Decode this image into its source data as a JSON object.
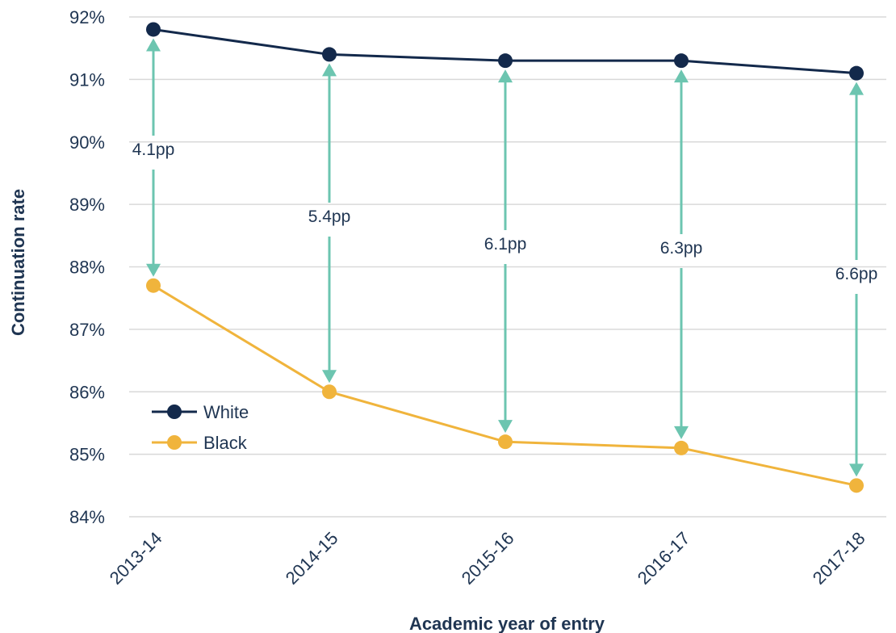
{
  "chart_data": {
    "type": "line",
    "title": "",
    "xlabel": "Academic year of entry",
    "ylabel": "Continuation rate",
    "categories": [
      "2013-14",
      "2014-15",
      "2015-16",
      "2016-17",
      "2017-18"
    ],
    "ylim": [
      84,
      92
    ],
    "yticks": [
      "84%",
      "85%",
      "86%",
      "87%",
      "88%",
      "89%",
      "90%",
      "91%",
      "92%"
    ],
    "grid": true,
    "legend_position": "bottom-left",
    "series": [
      {
        "name": "White",
        "color": "#13294b",
        "values": [
          91.8,
          91.4,
          91.3,
          91.3,
          91.1
        ]
      },
      {
        "name": "Black",
        "color": "#f0b43c",
        "values": [
          87.7,
          86.0,
          85.2,
          85.1,
          84.5
        ]
      }
    ],
    "gap_color": "#6cc5b0",
    "gaps": [
      {
        "label": "4.1pp"
      },
      {
        "label": "5.4pp"
      },
      {
        "label": "6.1pp"
      },
      {
        "label": "6.3pp"
      },
      {
        "label": "6.6pp"
      }
    ]
  }
}
